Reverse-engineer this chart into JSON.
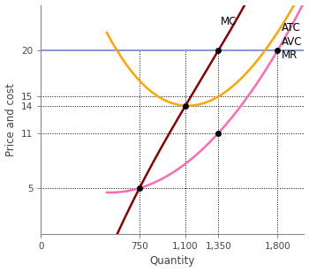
{
  "title": "",
  "xlabel": "Quantity",
  "ylabel": "Price and cost",
  "xlim": [
    0,
    2000
  ],
  "ylim": [
    0,
    25
  ],
  "price_color": "#8899dd",
  "mr_label": "MR",
  "mc_color": "#8B0000",
  "atc_color": "#FFA500",
  "avc_color": "#FF69B4",
  "mc_label": "MC",
  "atc_label": "ATC",
  "avc_label": "AVC",
  "background_color": "#ffffff",
  "axis_label_fontsize": 8.5,
  "label_fontsize": 8.5,
  "key_quantities": [
    750,
    1100,
    1350,
    1800
  ],
  "key_y_values": [
    5,
    11,
    14,
    15,
    20
  ],
  "dot_points": [
    [
      750,
      5
    ],
    [
      1100,
      14
    ],
    [
      1350,
      20
    ],
    [
      1800,
      20
    ],
    [
      1350,
      11
    ]
  ]
}
